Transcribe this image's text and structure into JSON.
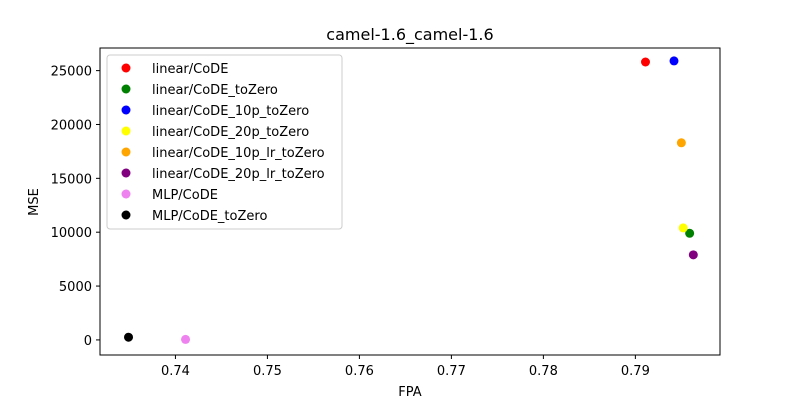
{
  "chart_data": {
    "type": "scatter",
    "title": "camel-1.6_camel-1.6",
    "xlabel": "FPA",
    "ylabel": "MSE",
    "xlim": [
      0.7318,
      0.7992
    ],
    "ylim": [
      -1400,
      27100
    ],
    "xticks": [
      0.74,
      0.75,
      0.76,
      0.77,
      0.78,
      0.79
    ],
    "xtick_labels": [
      "0.74",
      "0.75",
      "0.76",
      "0.77",
      "0.78",
      "0.79"
    ],
    "yticks": [
      0,
      5000,
      10000,
      15000,
      20000,
      25000
    ],
    "ytick_labels": [
      "0",
      "5000",
      "10000",
      "15000",
      "20000",
      "25000"
    ],
    "grid": false,
    "legend_position": "upper-left",
    "series": [
      {
        "name": "linear/CoDE",
        "color": "#ff0000",
        "points": [
          {
            "x": 0.7911,
            "y": 25800
          }
        ]
      },
      {
        "name": "linear/CoDE_toZero",
        "color": "#008000",
        "points": [
          {
            "x": 0.7959,
            "y": 9900
          }
        ]
      },
      {
        "name": "linear/CoDE_10p_toZero",
        "color": "#0000ff",
        "points": [
          {
            "x": 0.7942,
            "y": 25900
          }
        ]
      },
      {
        "name": "linear/CoDE_20p_toZero",
        "color": "#ffff00",
        "points": [
          {
            "x": 0.7952,
            "y": 10400
          }
        ]
      },
      {
        "name": "linear/CoDE_10p_lr_toZero",
        "color": "#ffa500",
        "points": [
          {
            "x": 0.795,
            "y": 18300
          }
        ]
      },
      {
        "name": "linear/CoDE_20p_lr_toZero",
        "color": "#800080",
        "points": [
          {
            "x": 0.7963,
            "y": 7900
          }
        ]
      },
      {
        "name": "MLP/CoDE",
        "color": "#ee82ee",
        "points": [
          {
            "x": 0.7411,
            "y": 50
          }
        ]
      },
      {
        "name": "MLP/CoDE_toZero",
        "color": "#000000",
        "points": [
          {
            "x": 0.7349,
            "y": 250
          }
        ]
      }
    ]
  }
}
